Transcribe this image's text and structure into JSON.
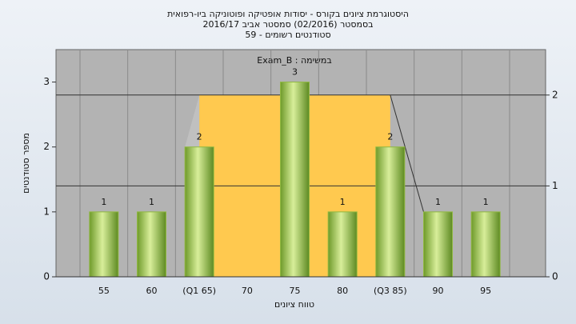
{
  "chart_data": {
    "type": "bar",
    "title": "היסטוגרמת ציונים בקורס - יסודות אופטיקה ופוטוניקה ביו-רפואית",
    "subtitle": "בסמסטר  (02/2016)  סמסטר אביב 2016/17",
    "subtitle2": "סטודנטים רשומים - 59",
    "annotation": "Exam_B : במשימה",
    "x_label": "טווח ציונים",
    "y_label": "מספר סטודנטים",
    "categories": [
      "55",
      "60",
      "(Q1 65)",
      "70",
      "75",
      "80",
      "(Q3 85)",
      "90",
      "95"
    ],
    "values": [
      1,
      1,
      2,
      0,
      3,
      1,
      2,
      1,
      1
    ],
    "color": "#8fb840",
    "ylim": [
      0,
      3.5
    ],
    "yticks": [
      0,
      1,
      2,
      3
    ],
    "y2lim": [
      0,
      2.5
    ],
    "y2ticks": [
      0,
      1,
      2
    ],
    "quartile_range": {
      "start": "(Q1 65)",
      "end": "(Q3 85)",
      "value": 2,
      "axis": "y2",
      "color": "#ffc94f"
    }
  }
}
